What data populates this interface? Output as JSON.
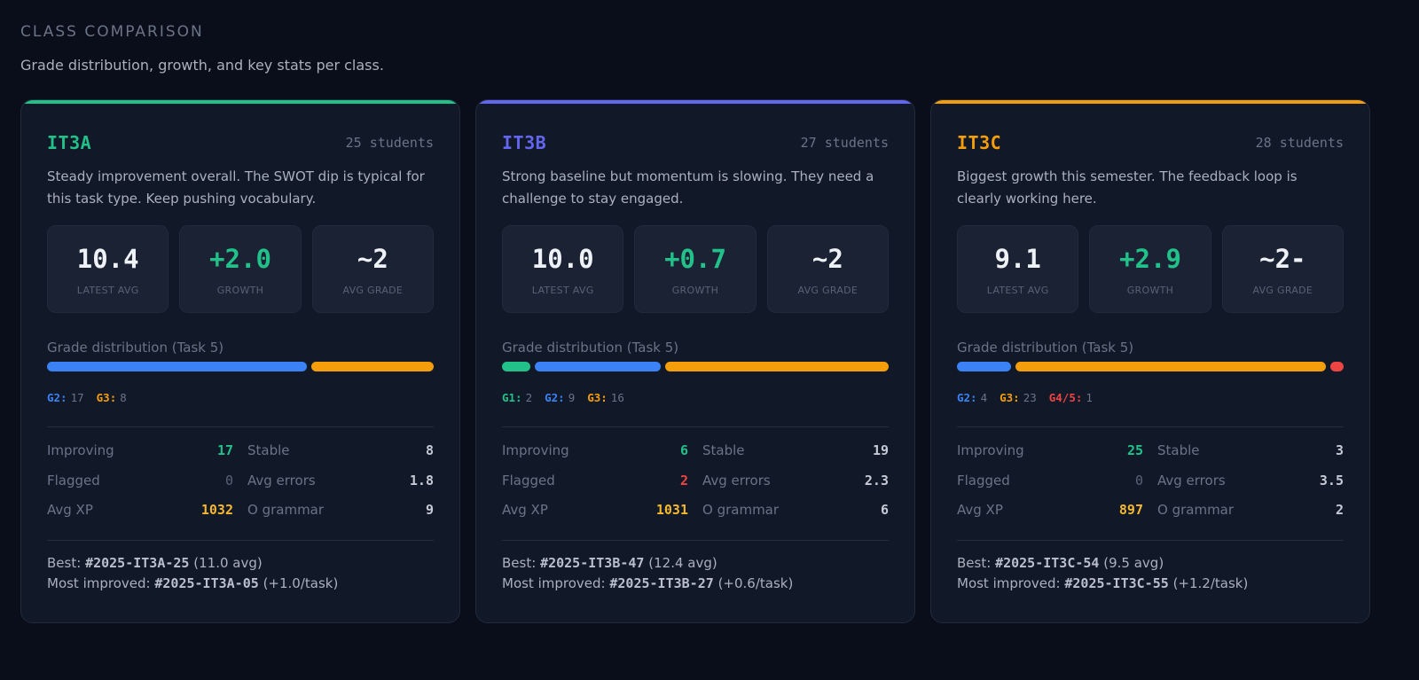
{
  "section": {
    "title": "CLASS COMPARISON",
    "subtitle": "Grade distribution, growth, and key stats per class."
  },
  "labels": {
    "latest_avg": "LATEST AVG",
    "growth": "GROWTH",
    "avg_grade": "AVG GRADE",
    "grade_distribution": "Grade distribution (Task 5)",
    "improving": "Improving",
    "stable": "Stable",
    "flagged": "Flagged",
    "avg_errors": "Avg errors",
    "avg_xp": "Avg XP",
    "o_grammar": "O grammar",
    "best": "Best:",
    "most_improved": "Most improved:"
  },
  "colors": {
    "G1": "#22c18a",
    "G2": "#3b82f6",
    "G3": "#f59e0b",
    "G4/5": "#ef4444"
  },
  "classes": [
    {
      "name": "IT3A",
      "accent": "#22c18a",
      "students": "25 students",
      "description": "Steady improvement overall. The SWOT dip is typical for this task type. Keep pushing vocabulary.",
      "latest_avg": "10.4",
      "growth": "+2.0",
      "avg_grade": "~2",
      "distribution": [
        {
          "grade": "G2",
          "label": "G2:",
          "count": 17
        },
        {
          "grade": "G3",
          "label": "G3:",
          "count": 8
        }
      ],
      "improving": "17",
      "stable": "8",
      "flagged": "0",
      "avg_errors": "1.8",
      "avg_xp": "1032",
      "o_grammar": "9",
      "best_id": "#2025-IT3A-25",
      "best_note": "(11.0 avg)",
      "improved_id": "#2025-IT3A-05",
      "improved_note": "(+1.0/task)"
    },
    {
      "name": "IT3B",
      "accent": "#6366f1",
      "students": "27 students",
      "description": "Strong baseline but momentum is slowing. They need a challenge to stay engaged.",
      "latest_avg": "10.0",
      "growth": "+0.7",
      "avg_grade": "~2",
      "distribution": [
        {
          "grade": "G1",
          "label": "G1:",
          "count": 2
        },
        {
          "grade": "G2",
          "label": "G2:",
          "count": 9
        },
        {
          "grade": "G3",
          "label": "G3:",
          "count": 16
        }
      ],
      "improving": "6",
      "stable": "19",
      "flagged": "2",
      "avg_errors": "2.3",
      "avg_xp": "1031",
      "o_grammar": "6",
      "best_id": "#2025-IT3B-47",
      "best_note": "(12.4 avg)",
      "improved_id": "#2025-IT3B-27",
      "improved_note": "(+0.6/task)"
    },
    {
      "name": "IT3C",
      "accent": "#f59e0b",
      "students": "28 students",
      "description": "Biggest growth this semester. The feedback loop is clearly working here.",
      "latest_avg": "9.1",
      "growth": "+2.9",
      "avg_grade": "~2-",
      "distribution": [
        {
          "grade": "G2",
          "label": "G2:",
          "count": 4
        },
        {
          "grade": "G3",
          "label": "G3:",
          "count": 23
        },
        {
          "grade": "G4/5",
          "label": "G4/5:",
          "count": 1
        }
      ],
      "improving": "25",
      "stable": "3",
      "flagged": "0",
      "avg_errors": "3.5",
      "avg_xp": "897",
      "o_grammar": "2",
      "best_id": "#2025-IT3C-54",
      "best_note": "(9.5 avg)",
      "improved_id": "#2025-IT3C-55",
      "improved_note": "(+1.2/task)"
    }
  ]
}
